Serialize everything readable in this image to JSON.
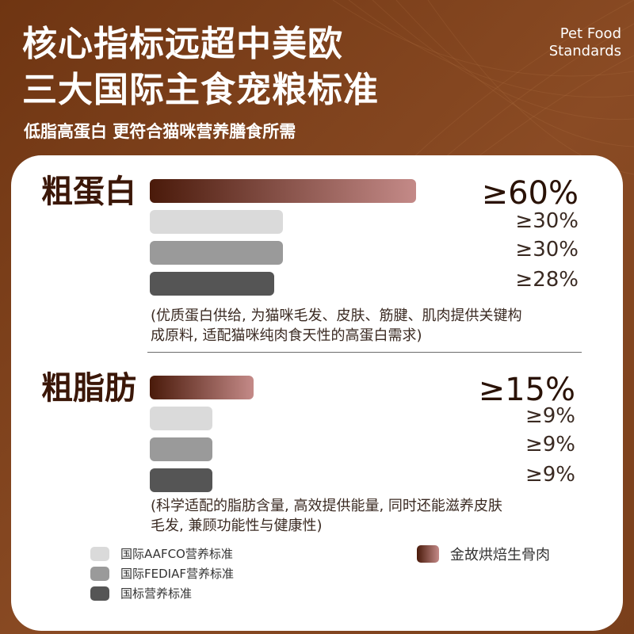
{
  "header": {
    "title_line1": "核心指标远超中美欧",
    "title_line2": "三大国际主食宠粮标准",
    "subtitle": "低脂高蛋白 更符合猫咪营养膳食所需",
    "english_line1": "Pet Food",
    "english_line2": "Standards"
  },
  "colors": {
    "background": "#7e411c",
    "golden_gradient_start": "#4a1a0a",
    "golden_gradient_end": "#c48a88",
    "aafco": "#dadada",
    "fediaf": "#9a9a9a",
    "national": "#555555"
  },
  "chart_data": [
    {
      "type": "bar",
      "label": "粗蛋白",
      "series": [
        {
          "name": "金故烘焙生骨肉",
          "value": 60,
          "text": "≥60%"
        },
        {
          "name": "国际AAFCO营养标准",
          "value": 30,
          "text": "≥30%"
        },
        {
          "name": "国际FEDIAF营养标准",
          "value": 30,
          "text": "≥30%"
        },
        {
          "name": "国标营养标准",
          "value": 28,
          "text": "≥28%"
        }
      ],
      "note_line1": "(优质蛋白供给, 为猫咪毛发、皮肤、筋腱、肌肉提供关键构",
      "note_line2": "成原料, 适配猫咪纯肉食天性的高蛋白需求)"
    },
    {
      "type": "bar",
      "label": "粗脂肪",
      "series": [
        {
          "name": "金故烘焙生骨肉",
          "value": 15,
          "text": "≥15%"
        },
        {
          "name": "国际AAFCO营养标准",
          "value": 9,
          "text": "≥9%"
        },
        {
          "name": "国际FEDIAF营养标准",
          "value": 9,
          "text": "≥9%"
        },
        {
          "name": "国标营养标准",
          "value": 9,
          "text": "≥9%"
        }
      ],
      "note_line1": "(科学适配的脂肪含量, 高效提供能量, 同时还能滋养皮肤",
      "note_line2": "毛发, 兼顾功能性与健康性)"
    }
  ],
  "legend": [
    {
      "label": "国际AAFCO营养标准",
      "color": "#dadada"
    },
    {
      "label": "国际FEDIAF营养标准",
      "color": "#9a9a9a"
    },
    {
      "label": "国标营养标准",
      "color": "#555555"
    },
    {
      "label": "金故烘焙生骨肉",
      "color": "gradient"
    }
  ]
}
